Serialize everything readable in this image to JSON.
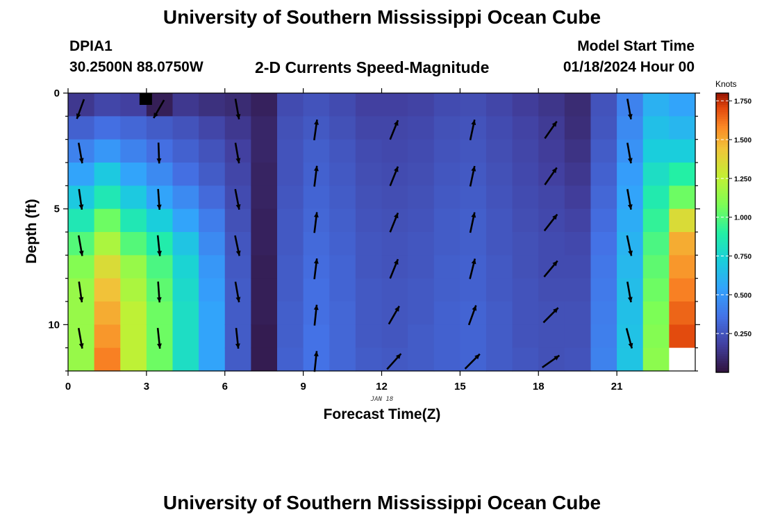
{
  "page": {
    "title": "University of Southern Mississippi Ocean Cube",
    "station": "DPIA1",
    "coords": "30.2500N  88.0750W",
    "subtitle": "2-D Currents Speed-Magnitude",
    "model_start_label": "Model Start Time",
    "model_start_value": "01/18/2024 Hour 00",
    "date_note": "JAN 18",
    "footer_title": "University of Southern Mississippi Ocean Cube"
  },
  "chart_data": {
    "type": "heatmap",
    "xlabel": "Forecast Time(Z)",
    "ylabel": "Depth (ft)",
    "xlim": [
      0,
      23
    ],
    "ylim": [
      0,
      12
    ],
    "x_ticks": [
      "0",
      "3",
      "6",
      "9",
      "12",
      "15",
      "18",
      "21"
    ],
    "y_ticks": [
      "0",
      "5",
      "10"
    ],
    "hours": [
      0,
      1,
      2,
      3,
      4,
      5,
      6,
      7,
      8,
      9,
      10,
      11,
      12,
      13,
      14,
      15,
      16,
      17,
      18,
      19,
      20,
      21,
      22,
      23
    ],
    "depth_levels_ft": [
      0.5,
      1.5,
      2.5,
      3.5,
      4.5,
      5.5,
      6.5,
      7.5,
      8.5,
      9.5,
      10.5,
      11.5
    ],
    "hour_columns": [
      {
        "hour": 0,
        "speeds": [
          0.15,
          0.3,
          0.42,
          0.55,
          0.7,
          0.85,
          1.0,
          1.1,
          1.15,
          1.15,
          1.15,
          1.15
        ]
      },
      {
        "hour": 1,
        "speeds": [
          0.2,
          0.35,
          0.5,
          0.7,
          0.85,
          1.05,
          1.2,
          1.35,
          1.45,
          1.5,
          1.55,
          1.6
        ]
      },
      {
        "hour": 2,
        "speeds": [
          0.18,
          0.32,
          0.42,
          0.55,
          0.7,
          0.85,
          1.0,
          1.15,
          1.2,
          1.25,
          1.25,
          1.25
        ]
      },
      {
        "hour": 3,
        "speeds": [
          0.05,
          0.28,
          0.35,
          0.45,
          0.55,
          0.72,
          0.88,
          0.98,
          1.02,
          1.05,
          1.05,
          1.05
        ]
      },
      {
        "hour": 4,
        "speeds": [
          0.15,
          0.25,
          0.3,
          0.35,
          0.45,
          0.55,
          0.68,
          0.75,
          0.78,
          0.8,
          0.8,
          0.8
        ]
      },
      {
        "hour": 5,
        "speeds": [
          0.12,
          0.2,
          0.25,
          0.28,
          0.33,
          0.4,
          0.45,
          0.5,
          0.52,
          0.55,
          0.55,
          0.55
        ]
      },
      {
        "hour": 6,
        "speeds": [
          0.1,
          0.15,
          0.18,
          0.2,
          0.22,
          0.24,
          0.26,
          0.27,
          0.28,
          0.28,
          0.28,
          0.28
        ]
      },
      {
        "hour": 7,
        "speeds": [
          0.06,
          0.08,
          0.08,
          0.07,
          0.07,
          0.06,
          0.06,
          0.05,
          0.05,
          0.05,
          0.04,
          0.04
        ]
      },
      {
        "hour": 8,
        "speeds": [
          0.22,
          0.24,
          0.25,
          0.25,
          0.26,
          0.27,
          0.27,
          0.28,
          0.28,
          0.29,
          0.29,
          0.3
        ]
      },
      {
        "hour": 9,
        "speeds": [
          0.25,
          0.27,
          0.29,
          0.3,
          0.31,
          0.32,
          0.33,
          0.34,
          0.35,
          0.35,
          0.36,
          0.36
        ]
      },
      {
        "hour": 10,
        "speeds": [
          0.22,
          0.24,
          0.26,
          0.27,
          0.28,
          0.29,
          0.3,
          0.31,
          0.31,
          0.32,
          0.32,
          0.32
        ]
      },
      {
        "hour": 11,
        "speeds": [
          0.18,
          0.2,
          0.22,
          0.23,
          0.24,
          0.25,
          0.26,
          0.26,
          0.27,
          0.27,
          0.27,
          0.28
        ]
      },
      {
        "hour": 12,
        "speeds": [
          0.18,
          0.2,
          0.21,
          0.22,
          0.23,
          0.24,
          0.25,
          0.25,
          0.26,
          0.26,
          0.26,
          0.27
        ]
      },
      {
        "hour": 13,
        "speeds": [
          0.19,
          0.21,
          0.22,
          0.23,
          0.24,
          0.25,
          0.26,
          0.26,
          0.27,
          0.27,
          0.28,
          0.28
        ]
      },
      {
        "hour": 14,
        "speeds": [
          0.22,
          0.24,
          0.25,
          0.26,
          0.27,
          0.28,
          0.28,
          0.29,
          0.29,
          0.3,
          0.3,
          0.3
        ]
      },
      {
        "hour": 15,
        "speeds": [
          0.23,
          0.25,
          0.26,
          0.27,
          0.28,
          0.29,
          0.29,
          0.3,
          0.3,
          0.31,
          0.31,
          0.31
        ]
      },
      {
        "hour": 16,
        "speeds": [
          0.2,
          0.22,
          0.23,
          0.24,
          0.25,
          0.26,
          0.26,
          0.27,
          0.27,
          0.28,
          0.28,
          0.28
        ]
      },
      {
        "hour": 17,
        "speeds": [
          0.17,
          0.19,
          0.2,
          0.21,
          0.22,
          0.23,
          0.24,
          0.24,
          0.25,
          0.25,
          0.25,
          0.26
        ]
      },
      {
        "hour": 18,
        "speeds": [
          0.14,
          0.16,
          0.17,
          0.18,
          0.2,
          0.21,
          0.22,
          0.22,
          0.23,
          0.24,
          0.24,
          0.24
        ]
      },
      {
        "hour": 19,
        "speeds": [
          0.1,
          0.11,
          0.13,
          0.15,
          0.17,
          0.19,
          0.21,
          0.22,
          0.23,
          0.24,
          0.24,
          0.25
        ]
      },
      {
        "hour": 20,
        "speeds": [
          0.25,
          0.26,
          0.28,
          0.3,
          0.32,
          0.34,
          0.36,
          0.38,
          0.39,
          0.4,
          0.41,
          0.42
        ]
      },
      {
        "hour": 21,
        "speeds": [
          0.42,
          0.45,
          0.48,
          0.52,
          0.55,
          0.58,
          0.61,
          0.63,
          0.65,
          0.66,
          0.67,
          0.68
        ]
      },
      {
        "hour": 22,
        "speeds": [
          0.6,
          0.66,
          0.72,
          0.8,
          0.87,
          0.93,
          0.98,
          1.02,
          1.05,
          1.08,
          1.1,
          1.12
        ]
      },
      {
        "hour": 23,
        "speeds": [
          0.55,
          0.62,
          0.72,
          0.9,
          1.05,
          1.35,
          1.5,
          1.55,
          1.6,
          1.65,
          1.7,
          null
        ]
      }
    ],
    "colorbar": {
      "label": "Knots",
      "min": 0.0,
      "max": 1.8,
      "ticks": [
        "1.750",
        "1.500",
        "1.250",
        "1.000",
        "0.750",
        "0.500",
        "0.250"
      ],
      "tick_values": [
        1.75,
        1.5,
        1.25,
        1.0,
        0.75,
        0.5,
        0.25
      ]
    },
    "vectors": [
      {
        "hour": 0,
        "depths": [
          0.6,
          2.5,
          4.5,
          6.5,
          8.5,
          10.5
        ],
        "angles_deg_from_north": [
          200,
          170,
          172,
          170,
          172,
          170
        ]
      },
      {
        "hour": 3,
        "depths": [
          0.6,
          2.5,
          4.5,
          6.5,
          8.5,
          10.5
        ],
        "angles_deg_from_north": [
          210,
          178,
          176,
          174,
          176,
          174
        ]
      },
      {
        "hour": 6,
        "depths": [
          0.6,
          2.5,
          4.5,
          6.5,
          8.5,
          10.5
        ],
        "angles_deg_from_north": [
          170,
          170,
          169,
          168,
          170,
          174
        ]
      },
      {
        "hour": 9,
        "depths": [
          1.5,
          3.5,
          5.5,
          7.5,
          9.5,
          11.5
        ],
        "angles_deg_from_north": [
          8,
          7,
          7,
          7,
          6,
          6
        ]
      },
      {
        "hour": 12,
        "depths": [
          1.5,
          3.5,
          5.5,
          7.5,
          9.5,
          11.5
        ],
        "angles_deg_from_north": [
          22,
          22,
          22,
          22,
          30,
          42
        ]
      },
      {
        "hour": 15,
        "depths": [
          1.5,
          3.5,
          5.5,
          7.5,
          9.5,
          11.5
        ],
        "angles_deg_from_north": [
          12,
          12,
          12,
          14,
          20,
          45
        ]
      },
      {
        "hour": 18,
        "depths": [
          1.5,
          3.5,
          5.5,
          7.5,
          9.5,
          11.5
        ],
        "angles_deg_from_north": [
          35,
          35,
          38,
          40,
          45,
          55
        ]
      },
      {
        "hour": 21,
        "depths": [
          0.6,
          2.5,
          4.5,
          6.5,
          8.5,
          10.5
        ],
        "angles_deg_from_north": [
          170,
          170,
          170,
          168,
          170,
          165
        ]
      }
    ],
    "grid": false,
    "legend": "right colorbar"
  }
}
